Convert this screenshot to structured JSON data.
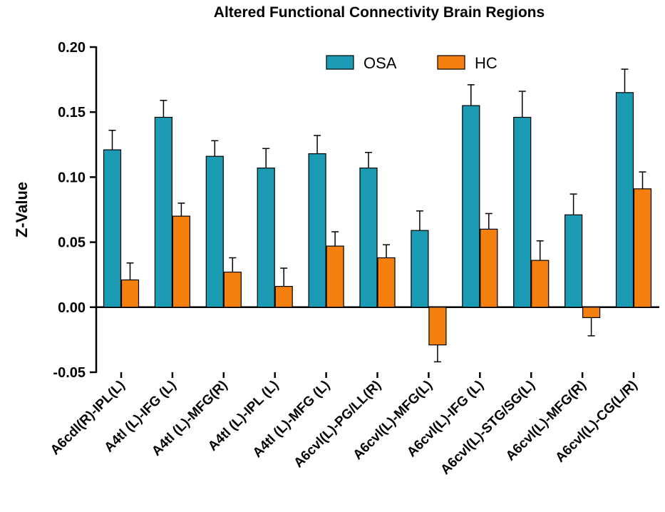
{
  "chart_data": {
    "type": "bar",
    "title": "Altered  Functional Connectivity Brain Regions",
    "xlabel": "",
    "ylabel": "Z-Value",
    "ylim": [
      -0.05,
      0.2
    ],
    "yticks": [
      -0.05,
      0.0,
      0.05,
      0.1,
      0.15,
      0.2
    ],
    "ytick_labels": [
      "-0.05",
      "0.00",
      "0.05",
      "0.10",
      "0.15",
      "0.20"
    ],
    "grid": false,
    "legend_position": "top",
    "categories": [
      "A6cdl(R)-IPL(L)",
      "A4tl (L)-IFG (L)",
      "A4tl (L)-MFG(R)",
      "A4tl (L)-IPL (L)",
      "A4tl (L)-MFG (L)",
      "A6cvl(L)-PG/LL(R)",
      "A6cvl(L)-MFG(L)",
      "A6cvl(L)-IFG (L)",
      "A6cvl(L)-STG/SG(L)",
      "A6cvl(L)-MFG(R)",
      "A6cvl(L)-CG(L/R)"
    ],
    "series": [
      {
        "name": "OSA",
        "color": "#1a9bb3",
        "values": [
          0.121,
          0.146,
          0.116,
          0.107,
          0.118,
          0.107,
          0.059,
          0.155,
          0.146,
          0.071,
          0.165
        ],
        "errors": [
          0.015,
          0.013,
          0.012,
          0.015,
          0.014,
          0.012,
          0.015,
          0.016,
          0.02,
          0.016,
          0.018
        ]
      },
      {
        "name": "HC",
        "color": "#f5800f",
        "values": [
          0.021,
          0.07,
          0.027,
          0.016,
          0.047,
          0.038,
          -0.029,
          0.06,
          0.036,
          -0.008,
          0.091
        ],
        "errors": [
          0.013,
          0.01,
          0.011,
          0.014,
          0.011,
          0.01,
          0.013,
          0.012,
          0.015,
          0.014,
          0.013
        ]
      }
    ]
  }
}
